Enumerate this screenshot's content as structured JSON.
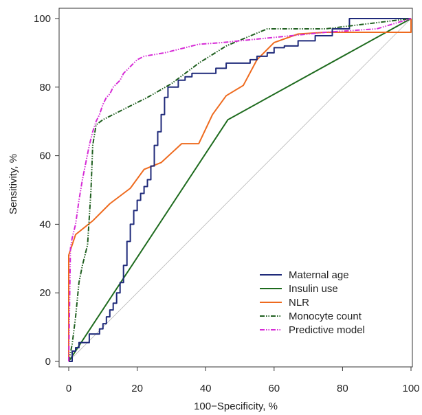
{
  "chart_data": {
    "type": "line",
    "title": "",
    "xlabel": "100−Specificity, %",
    "ylabel": "Sensitivity, %",
    "xlim": [
      0,
      100
    ],
    "ylim": [
      0,
      100
    ],
    "xticks": [
      0,
      20,
      40,
      60,
      80,
      100
    ],
    "yticks": [
      0,
      20,
      40,
      60,
      80,
      100
    ],
    "grid": false,
    "legend_position": "bottom-right",
    "reference_line": {
      "x": [
        0,
        100
      ],
      "y": [
        0,
        100
      ],
      "color": "#b5b5b5"
    },
    "series": [
      {
        "name": "Maternal age",
        "color": "#1f2a7a",
        "style": "step",
        "x": [
          0,
          1,
          2,
          3,
          4,
          5,
          6,
          7,
          9,
          10,
          11,
          12,
          13,
          14,
          15,
          16,
          17,
          18,
          19,
          20,
          21,
          22,
          23,
          24,
          25,
          26,
          27,
          28,
          29,
          30,
          32,
          34,
          36,
          38,
          40,
          43,
          46,
          50,
          53,
          55,
          58,
          60,
          63,
          67,
          72,
          77,
          82,
          90,
          100
        ],
        "y": [
          0,
          3,
          4,
          5.5,
          5.5,
          5.5,
          8,
          8,
          9.5,
          11,
          13,
          15,
          17,
          20,
          23,
          28,
          35,
          40,
          44,
          47,
          49,
          51,
          53,
          57,
          63,
          67,
          72,
          77,
          80,
          80,
          82,
          83,
          84,
          84,
          84,
          85.5,
          87,
          87,
          88,
          89,
          90,
          91.5,
          92,
          93.5,
          95,
          97,
          100,
          100,
          100
        ]
      },
      {
        "name": "Insulin use",
        "color": "#1e6b1e",
        "style": "line",
        "x": [
          0,
          46.5,
          100
        ],
        "y": [
          0,
          70.5,
          100
        ]
      },
      {
        "name": "NLR",
        "color": "#ee6a1e",
        "style": "line",
        "x": [
          0,
          0,
          2,
          7,
          12,
          18,
          22,
          27,
          33,
          38,
          42,
          46,
          51,
          55,
          60,
          67,
          75,
          85,
          100,
          100
        ],
        "y": [
          0,
          31,
          37,
          41,
          46,
          50.5,
          56,
          58,
          63.5,
          63.5,
          72,
          77.5,
          80.5,
          88,
          93,
          95.5,
          96,
          96,
          96,
          100
        ]
      },
      {
        "name": "Monocyte count",
        "color": "#1e5e1e",
        "style": "dash-dot-dot",
        "x": [
          0,
          1,
          2,
          3,
          4,
          5.5,
          6.5,
          7,
          8,
          10,
          14,
          18,
          23,
          30,
          38,
          46,
          52,
          58,
          65,
          75,
          100
        ],
        "y": [
          0,
          5,
          13,
          23,
          28,
          34,
          50,
          63,
          69,
          70.5,
          72.5,
          74.5,
          77,
          81,
          87,
          92,
          94.5,
          97,
          97,
          97,
          100
        ]
      },
      {
        "name": "Predictive model",
        "color": "#d62ad6",
        "style": "dash-dot-dot",
        "x": [
          0,
          0.5,
          1,
          2,
          3,
          4,
          5,
          6,
          7,
          8,
          9,
          10,
          11,
          12,
          13,
          14,
          15,
          16,
          17,
          18,
          20,
          22,
          25,
          28,
          32,
          38,
          45,
          55,
          65,
          75,
          90,
          100
        ],
        "y": [
          0,
          33,
          36,
          40,
          47,
          53,
          58,
          63,
          67,
          70,
          72,
          75,
          77,
          78,
          80,
          81,
          82,
          84,
          85,
          86,
          88,
          89,
          89.5,
          90,
          91,
          92.5,
          93,
          94,
          95,
          96,
          97,
          100
        ]
      }
    ]
  }
}
